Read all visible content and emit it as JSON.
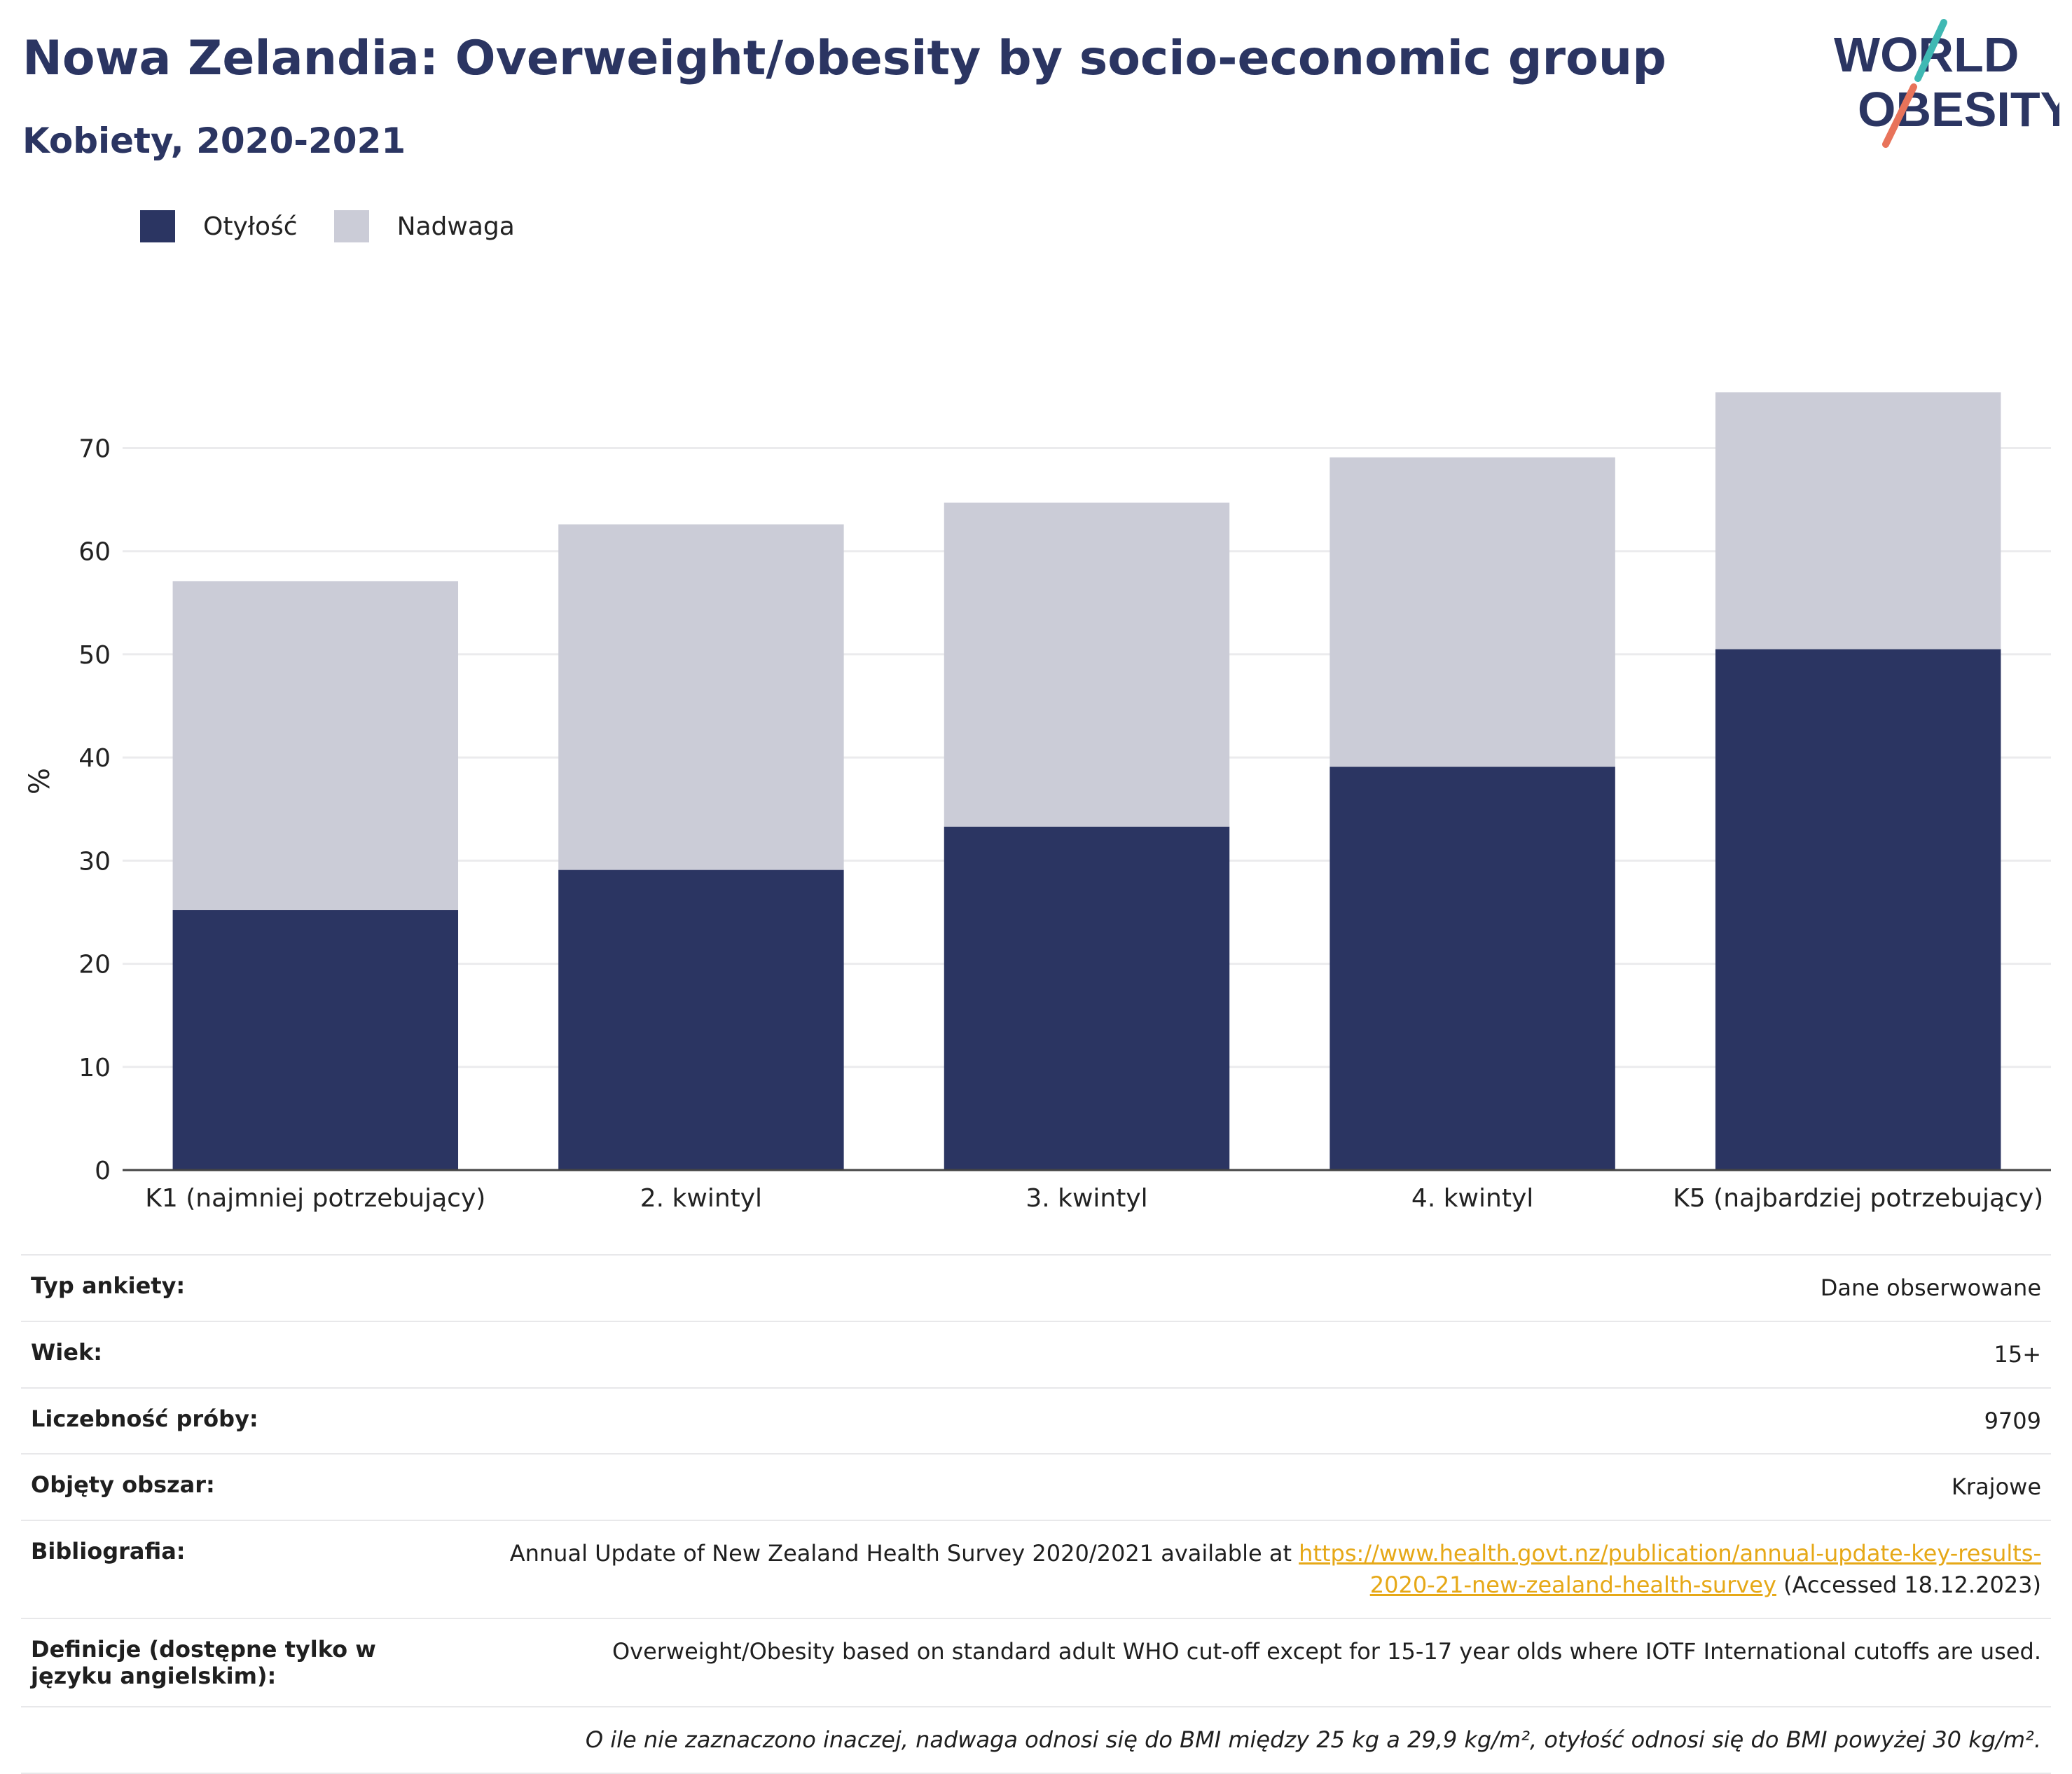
{
  "title": "Nowa Zelandia: Overweight/obesity by socio-economic group",
  "subtitle": "Kobiety, 2020-2021",
  "logo": {
    "line1": "WORLD",
    "line2": "OBESITY"
  },
  "colors": {
    "obesity": "#2b3562",
    "overweight": "#cbccd7",
    "title": "#2b3562",
    "link": "#e6a817",
    "logo_teal": "#3fb8b3",
    "logo_coral": "#e8735a"
  },
  "legend": [
    {
      "label": "Otyłość",
      "color": "#2b3562"
    },
    {
      "label": "Nadwaga",
      "color": "#cbccd7"
    }
  ],
  "chart_data": {
    "type": "bar",
    "stacked": true,
    "categories": [
      "K1 (najmniej potrzebujący)",
      "2. kwintyl",
      "3. kwintyl",
      "4. kwintyl",
      "K5 (najbardziej potrzebujący)"
    ],
    "series": [
      {
        "name": "Otyłość",
        "values": [
          25.2,
          29.1,
          33.3,
          39.1,
          50.5
        ]
      },
      {
        "name": "Nadwaga",
        "values": [
          31.9,
          33.5,
          31.4,
          30.0,
          24.9
        ]
      }
    ],
    "ylabel": "%",
    "ylim": [
      0,
      75.4
    ],
    "yticks": [
      0,
      10,
      20,
      30,
      40,
      50,
      60,
      70
    ],
    "grid": true,
    "legend_position": "top-left"
  },
  "info": [
    {
      "key": "Typ ankiety:",
      "value": "Dane obserwowane"
    },
    {
      "key": "Wiek:",
      "value": "15+"
    },
    {
      "key": "Liczebność próby:",
      "value": "9709"
    },
    {
      "key": "Objęty obszar:",
      "value": "Krajowe"
    },
    {
      "key": "Bibliografia:",
      "value_prefix": "Annual Update of New Zealand Health Survey 2020/2021 available at ",
      "link": "https://www.health.govt.nz/publication/annual-update-key-results-2020-21-new-zealand-health-survey",
      "value_suffix": " (Accessed 18.12.2023)"
    },
    {
      "key": "Definicje (dostępne tylko w języku angielskim):",
      "value": "Overweight/Obesity based on standard adult WHO cut-off except for 15-17 year olds where IOTF International cutoffs are used."
    },
    {
      "key": "",
      "value": "O ile nie zaznaczono inaczej, nadwaga odnosi się do BMI między 25 kg a 29,9 kg/m², otyłość odnosi się do BMI powyżej 30 kg/m²."
    }
  ]
}
